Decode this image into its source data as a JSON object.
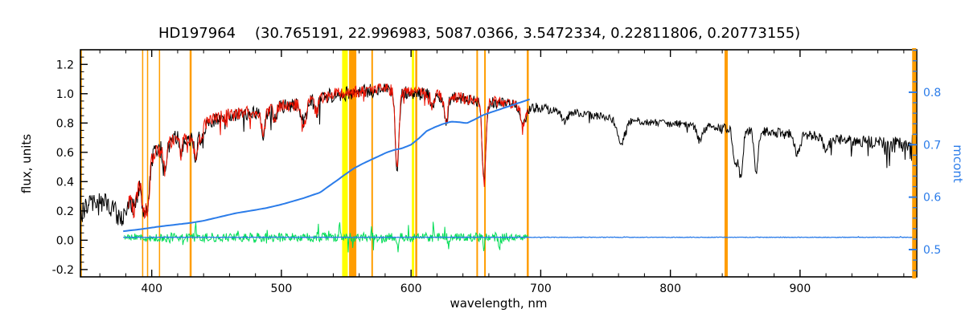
{
  "header": {
    "star_id": "HD197964",
    "params_text": "(30.765191, 22.996983, 5087.0366, 3.5472334, 0.22811806, 0.20773155)"
  },
  "chart_data": {
    "type": "line",
    "title": "HD197964   (30.765191, 22.996983, 5087.0366, 3.5472334, 0.22811806, 0.20773155)",
    "xlabel": "wavelength, nm",
    "ylabel_left": "flux, units",
    "ylabel_right": "mcont",
    "xlim": [
      345,
      990
    ],
    "ylim_left": [
      -0.25,
      1.3
    ],
    "ylim_right": [
      0.448,
      0.881
    ],
    "x_ticks": [
      400,
      500,
      600,
      700,
      800,
      900
    ],
    "x_minor_step": 20,
    "y_ticks_left": [
      -0.2,
      0.0,
      0.2,
      0.4,
      0.6,
      0.8,
      1.0,
      1.2
    ],
    "y_minor_step_left": 0.05,
    "y_ticks_right": [
      0.5,
      0.6,
      0.7,
      0.8
    ],
    "y_minor_step_right": 0.02,
    "grid": false,
    "legend": "none",
    "colors": {
      "spectrum": "#000000",
      "template": "#ee1100",
      "residual": "#00dd55",
      "mcont": "#2b7ce9",
      "mask": "#ff9d00",
      "highlight": "#ffff00",
      "frame": "#000000"
    },
    "noise_seed": 987654321,
    "sample_step": 0.5,
    "highlight_bands": [
      {
        "wl": 549,
        "w": 7
      },
      {
        "wl": 601.5,
        "w": 3
      }
    ],
    "mask_lines": [
      {
        "wl": 345.5,
        "w": 2
      },
      {
        "wl": 393.0,
        "w": 1.5
      },
      {
        "wl": 396.8,
        "w": 1.5
      },
      {
        "wl": 406.0,
        "w": 1.5
      },
      {
        "wl": 430.0,
        "w": 2.5
      },
      {
        "wl": 555.0,
        "w": 9
      },
      {
        "wl": 570.0,
        "w": 2
      },
      {
        "wl": 604.0,
        "w": 2.5
      },
      {
        "wl": 651.0,
        "w": 2
      },
      {
        "wl": 657.0,
        "w": 2
      },
      {
        "wl": 690.0,
        "w": 2.5
      },
      {
        "wl": 843.0,
        "w": 4
      },
      {
        "wl": 988.0,
        "w": 5,
        "front": true
      }
    ],
    "absorption_lines": [
      {
        "wl": 386.0,
        "depth": 0.15,
        "width": 1.5
      },
      {
        "wl": 389.0,
        "depth": 0.12,
        "width": 1.2
      },
      {
        "wl": 393.4,
        "depth": 0.28,
        "width": 1.5
      },
      {
        "wl": 396.8,
        "depth": 0.28,
        "width": 1.5
      },
      {
        "wl": 410.2,
        "depth": 0.16,
        "width": 1.3
      },
      {
        "wl": 422.7,
        "depth": 0.1,
        "width": 1.2
      },
      {
        "wl": 434.0,
        "depth": 0.18,
        "width": 1.3
      },
      {
        "wl": 438.3,
        "depth": 0.1,
        "width": 1.2
      },
      {
        "wl": 486.1,
        "depth": 0.16,
        "width": 1.3
      },
      {
        "wl": 495.0,
        "depth": 0.08,
        "width": 1.2
      },
      {
        "wl": 517.5,
        "depth": 0.12,
        "width": 1.8
      },
      {
        "wl": 527.0,
        "depth": 0.09,
        "width": 1.4
      },
      {
        "wl": 589.2,
        "depth": 0.5,
        "width": 1.4
      },
      {
        "wl": 616.5,
        "depth": 0.08,
        "width": 1.3
      },
      {
        "wl": 627.0,
        "depth": 0.2,
        "width": 1.3
      },
      {
        "wl": 656.3,
        "depth": 0.55,
        "width": 1.4
      },
      {
        "wl": 686.9,
        "depth": 0.12,
        "width": 2.2
      },
      {
        "wl": 718.5,
        "depth": 0.07,
        "width": 2.0
      },
      {
        "wl": 762.0,
        "depth": 0.16,
        "width": 2.8
      },
      {
        "wl": 822.7,
        "depth": 0.1,
        "width": 2.0
      },
      {
        "wl": 849.8,
        "depth": 0.26,
        "width": 1.5
      },
      {
        "wl": 854.2,
        "depth": 0.33,
        "width": 1.6
      },
      {
        "wl": 866.2,
        "depth": 0.28,
        "width": 1.5
      },
      {
        "wl": 898.0,
        "depth": 0.14,
        "width": 2.0
      },
      {
        "wl": 920.0,
        "depth": 0.1,
        "width": 2.0
      }
    ],
    "series": {
      "observed": {
        "type": "spectrum",
        "color_key": "spectrum",
        "range": [
          345,
          990
        ],
        "line_width": 1,
        "spike_chance": 0.03,
        "spike_scale": 2.5,
        "envelope": [
          [
            345,
            0.18
          ],
          [
            352,
            0.24
          ],
          [
            358,
            0.26
          ],
          [
            364,
            0.26
          ],
          [
            370,
            0.22
          ],
          [
            376,
            0.13
          ],
          [
            380,
            0.18
          ],
          [
            384,
            0.32
          ],
          [
            388,
            0.44
          ],
          [
            392,
            0.48
          ],
          [
            396,
            0.5
          ],
          [
            400,
            0.57
          ],
          [
            404,
            0.61
          ],
          [
            408,
            0.63
          ],
          [
            412,
            0.65
          ],
          [
            416,
            0.68
          ],
          [
            420,
            0.7
          ],
          [
            424,
            0.71
          ],
          [
            428,
            0.68
          ],
          [
            432,
            0.71
          ],
          [
            436,
            0.75
          ],
          [
            440,
            0.78
          ],
          [
            444,
            0.8
          ],
          [
            448,
            0.82
          ],
          [
            452,
            0.83
          ],
          [
            456,
            0.84
          ],
          [
            460,
            0.85
          ],
          [
            465,
            0.855
          ],
          [
            470,
            0.86
          ],
          [
            475,
            0.87
          ],
          [
            480,
            0.875
          ],
          [
            485,
            0.865
          ],
          [
            490,
            0.885
          ],
          [
            495,
            0.9
          ],
          [
            500,
            0.91
          ],
          [
            505,
            0.92
          ],
          [
            510,
            0.92
          ],
          [
            515,
            0.915
          ],
          [
            520,
            0.94
          ],
          [
            525,
            0.96
          ],
          [
            530,
            0.97
          ],
          [
            535,
            0.98
          ],
          [
            540,
            0.99
          ],
          [
            545,
            1.0
          ],
          [
            550,
            1.0
          ],
          [
            555,
            1.005
          ],
          [
            560,
            1.01
          ],
          [
            565,
            1.015
          ],
          [
            570,
            1.02
          ],
          [
            575,
            1.025
          ],
          [
            580,
            1.03
          ],
          [
            585,
            1.02
          ],
          [
            590,
            1.0
          ],
          [
            595,
            1.01
          ],
          [
            600,
            1.005
          ],
          [
            605,
            1.0
          ],
          [
            610,
            0.995
          ],
          [
            615,
            0.99
          ],
          [
            620,
            0.985
          ],
          [
            625,
            0.98
          ],
          [
            630,
            0.975
          ],
          [
            635,
            0.97
          ],
          [
            640,
            0.965
          ],
          [
            645,
            0.955
          ],
          [
            650,
            0.945
          ],
          [
            655,
            0.935
          ],
          [
            660,
            0.94
          ],
          [
            665,
            0.94
          ],
          [
            670,
            0.935
          ],
          [
            675,
            0.93
          ],
          [
            680,
            0.925
          ],
          [
            690,
            0.915
          ],
          [
            700,
            0.9
          ],
          [
            710,
            0.89
          ],
          [
            720,
            0.875
          ],
          [
            730,
            0.865
          ],
          [
            740,
            0.85
          ],
          [
            750,
            0.84
          ],
          [
            760,
            0.825
          ],
          [
            770,
            0.82
          ],
          [
            780,
            0.81
          ],
          [
            790,
            0.8
          ],
          [
            800,
            0.795
          ],
          [
            810,
            0.79
          ],
          [
            820,
            0.78
          ],
          [
            830,
            0.775
          ],
          [
            840,
            0.768
          ],
          [
            850,
            0.76
          ],
          [
            860,
            0.752
          ],
          [
            870,
            0.744
          ],
          [
            880,
            0.736
          ],
          [
            890,
            0.728
          ],
          [
            900,
            0.72
          ],
          [
            910,
            0.712
          ],
          [
            920,
            0.7
          ],
          [
            930,
            0.69
          ],
          [
            940,
            0.68
          ],
          [
            950,
            0.672
          ],
          [
            960,
            0.664
          ],
          [
            970,
            0.655
          ],
          [
            980,
            0.645
          ],
          [
            985,
            0.63
          ],
          [
            990,
            0.55
          ]
        ],
        "noise": [
          [
            345,
            0.07
          ],
          [
            370,
            0.07
          ],
          [
            385,
            0.065
          ],
          [
            400,
            0.06
          ],
          [
            430,
            0.055
          ],
          [
            460,
            0.048
          ],
          [
            490,
            0.046
          ],
          [
            520,
            0.05
          ],
          [
            560,
            0.05
          ],
          [
            600,
            0.045
          ],
          [
            640,
            0.04
          ],
          [
            680,
            0.035
          ],
          [
            720,
            0.028
          ],
          [
            760,
            0.025
          ],
          [
            800,
            0.027
          ],
          [
            840,
            0.03
          ],
          [
            880,
            0.032
          ],
          [
            920,
            0.035
          ],
          [
            960,
            0.045
          ],
          [
            980,
            0.06
          ],
          [
            988,
            0.14
          ],
          [
            990,
            0.2
          ]
        ]
      },
      "template": {
        "type": "spectrum",
        "color_key": "template",
        "range": [
          382,
          690
        ],
        "line_width": 1,
        "envelope_ref": "observed",
        "offset": 0.005,
        "spike_chance": 0.035,
        "spike_scale": 3.2,
        "noise": [
          [
            382,
            0.055
          ],
          [
            430,
            0.05
          ],
          [
            470,
            0.045
          ],
          [
            520,
            0.045
          ],
          [
            570,
            0.04
          ],
          [
            620,
            0.04
          ],
          [
            690,
            0.035
          ]
        ]
      },
      "residual": {
        "type": "flat",
        "color_key": "residual",
        "range": [
          379,
          690
        ],
        "line_width": 1,
        "mean": 0.02,
        "spike_chance": 0.05,
        "spike_scale": 2.8,
        "noise": [
          [
            379,
            0.015
          ],
          [
            400,
            0.03
          ],
          [
            430,
            0.033
          ],
          [
            470,
            0.03
          ],
          [
            510,
            0.033
          ],
          [
            550,
            0.03
          ],
          [
            590,
            0.033
          ],
          [
            630,
            0.03
          ],
          [
            670,
            0.033
          ],
          [
            690,
            0.02
          ]
        ],
        "spikes": [
          {
            "wl": 434,
            "amp": 0.07
          },
          {
            "wl": 545,
            "amp": 0.09
          },
          {
            "wl": 590,
            "amp": -0.1
          },
          {
            "wl": 629,
            "amp": -0.09
          },
          {
            "wl": 656,
            "amp": -0.08
          },
          {
            "wl": 668,
            "amp": -0.1
          }
        ]
      },
      "baseline": {
        "type": "flat",
        "color_key": "mcont",
        "range": [
          378,
          990
        ],
        "line_width": 1.3,
        "mean": 0.02,
        "spike_chance": 0.012,
        "spike_scale": 2.5,
        "noise": [
          [
            378,
            0.002
          ],
          [
            990,
            0.002
          ]
        ],
        "spikes": []
      },
      "mcont": {
        "type": "smooth",
        "color_key": "mcont",
        "axis": "right",
        "range": [
          378,
          692
        ],
        "line_width": 2,
        "points": [
          [
            378,
            0.535
          ],
          [
            392,
            0.539
          ],
          [
            406,
            0.544
          ],
          [
            420,
            0.548
          ],
          [
            430,
            0.551
          ],
          [
            440,
            0.555
          ],
          [
            452,
            0.562
          ],
          [
            464,
            0.569
          ],
          [
            476,
            0.574
          ],
          [
            488,
            0.579
          ],
          [
            500,
            0.586
          ],
          [
            510,
            0.593
          ],
          [
            517,
            0.598
          ],
          [
            524,
            0.604
          ],
          [
            530,
            0.609
          ],
          [
            536,
            0.62
          ],
          [
            543,
            0.632
          ],
          [
            549,
            0.643
          ],
          [
            556,
            0.655
          ],
          [
            562,
            0.663
          ],
          [
            568,
            0.67
          ],
          [
            575,
            0.678
          ],
          [
            581,
            0.685
          ],
          [
            587,
            0.69
          ],
          [
            593,
            0.693
          ],
          [
            600,
            0.7
          ],
          [
            606,
            0.712
          ],
          [
            612,
            0.726
          ],
          [
            618,
            0.733
          ],
          [
            624,
            0.739
          ],
          [
            631,
            0.744
          ],
          [
            637,
            0.743
          ],
          [
            643,
            0.741
          ],
          [
            649,
            0.748
          ],
          [
            656,
            0.757
          ],
          [
            662,
            0.762
          ],
          [
            668,
            0.767
          ],
          [
            674,
            0.772
          ],
          [
            681,
            0.778
          ],
          [
            686,
            0.782
          ],
          [
            692,
            0.787
          ]
        ]
      }
    }
  }
}
